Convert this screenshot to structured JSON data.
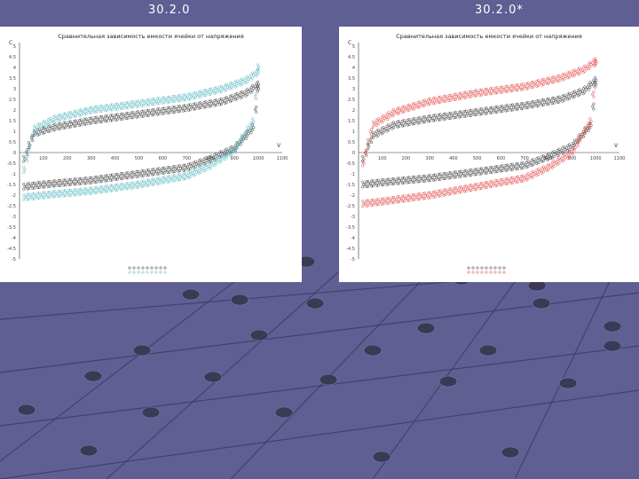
{
  "slide": {
    "titles": [
      "30.2.0",
      "30.2.0*"
    ]
  },
  "colors": {
    "background": "#5f5f94",
    "grid_line": "#2f2f55",
    "node": "#3a3a55",
    "series_black": "#222222",
    "series_cyan": "#3fb0b8",
    "series_red": "#e03030"
  },
  "chart_data": [
    {
      "type": "scatter",
      "title": "Сравнительная зависимость емкости ячейки от напряжения",
      "ylabel": "C",
      "xlabel": "V",
      "x_ticks": [
        "100",
        "200",
        "300",
        "400",
        "500",
        "600",
        "700",
        "800",
        "900",
        "1000",
        "1100"
      ],
      "y_ticks": [
        "5",
        "4.5",
        "4",
        "3.5",
        "3",
        "2.5",
        "2",
        "1.5",
        "1",
        "0.5",
        "0",
        "-0.5",
        "-1",
        "-1.5",
        "-2",
        "-2.5",
        "-3",
        "-3.5",
        "-4",
        "-4.5",
        "-5"
      ],
      "xlim": [
        0,
        1100
      ],
      "ylim": [
        -5,
        5
      ],
      "series": [
        {
          "color": "series_black",
          "upper": {
            "x": [
              20,
              60,
              150,
              300,
              500,
              700,
              850,
              950,
              1000
            ],
            "y": [
              -0.3,
              0.9,
              1.2,
              1.5,
              1.8,
              2.1,
              2.4,
              2.8,
              3.2
            ]
          },
          "lower": {
            "x": [
              20,
              100,
              300,
              500,
              700,
              800,
              900,
              980,
              1000
            ],
            "y": [
              -1.6,
              -1.5,
              -1.3,
              -1.0,
              -0.7,
              -0.3,
              0.2,
              1.2,
              3.0
            ]
          }
        },
        {
          "color": "series_cyan",
          "upper": {
            "x": [
              20,
              60,
              150,
              300,
              500,
              700,
              850,
              950,
              1000
            ],
            "y": [
              -0.8,
              1.1,
              1.6,
              2.0,
              2.3,
              2.6,
              3.0,
              3.4,
              3.8
            ]
          },
          "lower": {
            "x": [
              20,
              100,
              300,
              500,
              700,
              800,
              900,
              980,
              1000
            ],
            "y": [
              -2.1,
              -2.0,
              -1.8,
              -1.5,
              -1.1,
              -0.6,
              0.1,
              1.5,
              4.0
            ]
          }
        }
      ]
    },
    {
      "type": "scatter",
      "title": "Сравнительная зависимость емкости ячейки от напряжения",
      "ylabel": "C",
      "xlabel": "V",
      "x_ticks": [
        "100",
        "200",
        "300",
        "400",
        "500",
        "600",
        "700",
        "800",
        "900",
        "1000",
        "1100"
      ],
      "y_ticks": [
        "5",
        "4.5",
        "4",
        "3.5",
        "3",
        "2.5",
        "2",
        "1.5",
        "1",
        "0.5",
        "0",
        "-0.5",
        "-1",
        "-1.5",
        "-2",
        "-2.5",
        "-3",
        "-3.5",
        "-4",
        "-4.5",
        "-5"
      ],
      "xlim": [
        0,
        1100
      ],
      "ylim": [
        -5,
        5
      ],
      "series": [
        {
          "color": "series_black",
          "upper": {
            "x": [
              20,
              60,
              150,
              300,
              500,
              700,
              850,
              950,
              1000
            ],
            "y": [
              -0.3,
              0.8,
              1.3,
              1.6,
              1.9,
              2.2,
              2.5,
              2.9,
              3.4
            ]
          },
          "lower": {
            "x": [
              20,
              100,
              300,
              500,
              700,
              800,
              900,
              980,
              1000
            ],
            "y": [
              -1.5,
              -1.4,
              -1.2,
              -0.9,
              -0.6,
              -0.2,
              0.3,
              1.3,
              3.2
            ]
          }
        },
        {
          "color": "series_red",
          "upper": {
            "x": [
              20,
              60,
              150,
              300,
              500,
              700,
              850,
              950,
              1000
            ],
            "y": [
              -0.5,
              1.3,
              1.9,
              2.4,
              2.8,
              3.1,
              3.5,
              3.9,
              4.3
            ]
          },
          "lower": {
            "x": [
              20,
              100,
              300,
              500,
              700,
              800,
              900,
              980,
              1000
            ],
            "y": [
              -2.4,
              -2.3,
              -2.0,
              -1.6,
              -1.2,
              -0.7,
              0.0,
              1.5,
              4.2
            ]
          }
        }
      ]
    }
  ]
}
